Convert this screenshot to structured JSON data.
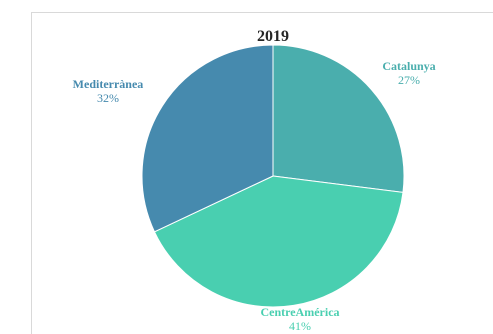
{
  "chart_data": {
    "type": "pie",
    "title": "2019",
    "slices": [
      {
        "label": "Catalunya",
        "value": 27,
        "percent_label": "27%",
        "color": "#4aaead",
        "label_color": "#4aaead"
      },
      {
        "label": "CentreAmérica",
        "value": 41,
        "percent_label": "41%",
        "color": "#49cfb0",
        "label_color": "#49cfb0"
      },
      {
        "label": "Mediterrànea",
        "value": 32,
        "percent_label": "32%",
        "color": "#468aae",
        "label_color": "#468aae"
      }
    ],
    "start_angle_deg": 0,
    "direction": "clockwise",
    "legend": "none"
  }
}
